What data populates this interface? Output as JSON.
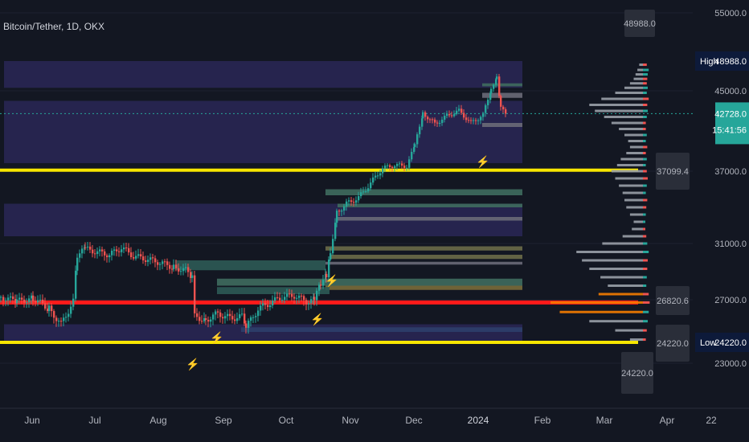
{
  "chart_data": {
    "type": "candlestick",
    "title": "Bitcoin/Tether, 1D, OKX",
    "yticks": [
      55000,
      45000,
      37000,
      31000,
      27000,
      23000
    ],
    "ytick_labels": [
      "55000.0",
      "45000.0",
      "37000.0",
      "31000.0",
      "27000.0",
      "23000.0"
    ],
    "xtick_labels": [
      "Jun",
      "Jul",
      "Aug",
      "Sep",
      "Oct",
      "Nov",
      "Dec",
      "2024",
      "Feb",
      "Mar",
      "Apr",
      "22"
    ],
    "price_labels": {
      "high_text": "High",
      "high_value": "48988.0",
      "last_value": "42728.0",
      "countdown": "15:41:56",
      "low_text": "Low",
      "low_value": "24220.0"
    },
    "profile_labels": [
      "48988.0",
      "37099.4",
      "26820.6",
      "24220.0",
      "24220.0"
    ],
    "levels": {
      "high": 48988,
      "last": 42728,
      "poc": 26820.6,
      "yellow_upper": 37099.4,
      "low": 24220
    },
    "colors": {
      "up": "#26a69a",
      "down": "#ef5350",
      "poc": "#ff1a1a",
      "yellow": "#f7e600",
      "zone": "#2d2a5e",
      "profile_grey": "#9aa0a8",
      "profile_orange": "#f57c00",
      "last_label": "#26a69a",
      "dark_label": "#0d1a3a"
    },
    "series_close": [
      [
        0,
        27200
      ],
      [
        20,
        26900
      ],
      [
        40,
        27100
      ],
      [
        60,
        26400
      ],
      [
        75,
        25400
      ],
      [
        90,
        26900
      ],
      [
        95,
        30200
      ],
      [
        105,
        30600
      ],
      [
        120,
        30400
      ],
      [
        135,
        30200
      ],
      [
        150,
        30700
      ],
      [
        165,
        30100
      ],
      [
        180,
        29900
      ],
      [
        195,
        29700
      ],
      [
        215,
        29300
      ],
      [
        230,
        29100
      ],
      [
        238,
        28600
      ],
      [
        241,
        25900
      ],
      [
        255,
        25700
      ],
      [
        270,
        26100
      ],
      [
        285,
        25800
      ],
      [
        300,
        25900
      ],
      [
        305,
        25200
      ],
      [
        320,
        26400
      ],
      [
        335,
        26800
      ],
      [
        350,
        27200
      ],
      [
        365,
        27300
      ],
      [
        380,
        26900
      ],
      [
        390,
        27000
      ],
      [
        398,
        28200
      ],
      [
        405,
        28700
      ],
      [
        410,
        30400
      ],
      [
        418,
        33600
      ],
      [
        430,
        34300
      ],
      [
        445,
        34800
      ],
      [
        460,
        36000
      ],
      [
        475,
        37300
      ],
      [
        490,
        37600
      ],
      [
        505,
        37500
      ],
      [
        515,
        39500
      ],
      [
        525,
        42800
      ],
      [
        540,
        41700
      ],
      [
        555,
        42500
      ],
      [
        570,
        43000
      ],
      [
        585,
        41800
      ],
      [
        600,
        42600
      ],
      [
        610,
        45200
      ],
      [
        617,
        47000
      ],
      [
        622,
        43200
      ],
      [
        630,
        42728
      ]
    ],
    "volume_profile_bins": [
      [
        48500,
        4,
        8
      ],
      [
        47800,
        6,
        12
      ],
      [
        47200,
        8,
        10
      ],
      [
        46600,
        10,
        9
      ],
      [
        46000,
        14,
        8
      ],
      [
        45400,
        20,
        10
      ],
      [
        44800,
        30,
        8
      ],
      [
        44200,
        45,
        12
      ],
      [
        43600,
        58,
        9
      ],
      [
        43000,
        52,
        10
      ],
      [
        42400,
        42,
        8
      ],
      [
        41800,
        34,
        6
      ],
      [
        41200,
        26,
        6
      ],
      [
        40600,
        20,
        8
      ],
      [
        40000,
        16,
        6
      ],
      [
        39400,
        14,
        9
      ],
      [
        38800,
        18,
        6
      ],
      [
        38200,
        24,
        8
      ],
      [
        37600,
        28,
        6
      ],
      [
        37000,
        34,
        8
      ],
      [
        36400,
        30,
        10
      ],
      [
        35800,
        26,
        8
      ],
      [
        35200,
        22,
        6
      ],
      [
        34600,
        20,
        9
      ],
      [
        34000,
        18,
        7
      ],
      [
        33400,
        14,
        6
      ],
      [
        32800,
        10,
        5
      ],
      [
        32200,
        12,
        5
      ],
      [
        31600,
        22,
        7
      ],
      [
        31000,
        44,
        9
      ],
      [
        30400,
        72,
        12
      ],
      [
        29800,
        66,
        10
      ],
      [
        29200,
        58,
        9
      ],
      [
        28600,
        46,
        8
      ],
      [
        28000,
        38,
        7
      ],
      [
        27400,
        48,
        12
      ],
      [
        26820,
        100,
        14
      ],
      [
        26200,
        90,
        12
      ],
      [
        25600,
        58,
        10
      ],
      [
        25000,
        30,
        8
      ],
      [
        24400,
        14,
        6
      ]
    ]
  }
}
